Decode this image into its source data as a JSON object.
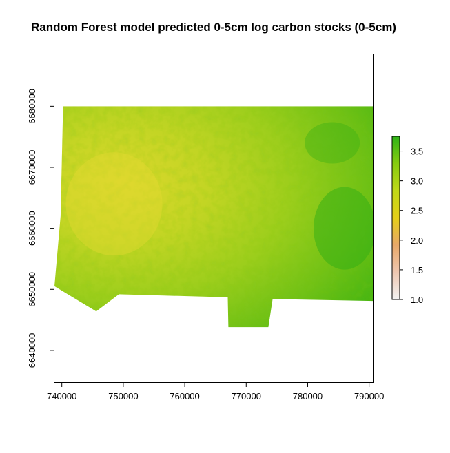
{
  "chart_data": {
    "type": "heatmap",
    "title": "Random Forest model predicted 0-5cm log carbon stocks (0-5cm)",
    "xlim": [
      738800,
      790600
    ],
    "ylim": [
      6634800,
      6688500
    ],
    "x_ticks": [
      740000,
      750000,
      760000,
      770000,
      780000,
      790000
    ],
    "x_tick_labels": [
      "740000",
      "750000",
      "760000",
      "770000",
      "780000",
      "790000"
    ],
    "y_ticks": [
      6640000,
      6650000,
      6660000,
      6670000,
      6680000
    ],
    "y_tick_labels": [
      "6640000",
      "6650000",
      "6660000",
      "6670000",
      "6680000"
    ],
    "raster_extent": {
      "outline": [
        [
          740200,
          6680000
        ],
        [
          790600,
          6680000
        ],
        [
          790600,
          6648100
        ],
        [
          774300,
          6648400
        ],
        [
          773600,
          6643800
        ],
        [
          767100,
          6643800
        ],
        [
          767000,
          6648700
        ],
        [
          749300,
          6649200
        ],
        [
          745600,
          6646400
        ],
        [
          738800,
          6650500
        ],
        [
          739800,
          6662000
        ]
      ]
    },
    "legend": {
      "min": 1.0,
      "max": 3.75,
      "ticks": [
        1.0,
        1.5,
        2.0,
        2.5,
        3.0,
        3.5
      ],
      "tick_labels": [
        "1.0",
        "1.5",
        "2.0",
        "2.5",
        "3.0",
        "3.5"
      ],
      "colors": [
        "#f2f2f2",
        "#eec6b0",
        "#e8a868",
        "#e5cf18",
        "#c0d818",
        "#86cb10",
        "#2fb318"
      ]
    },
    "grid": false,
    "legend_placement": "right"
  }
}
